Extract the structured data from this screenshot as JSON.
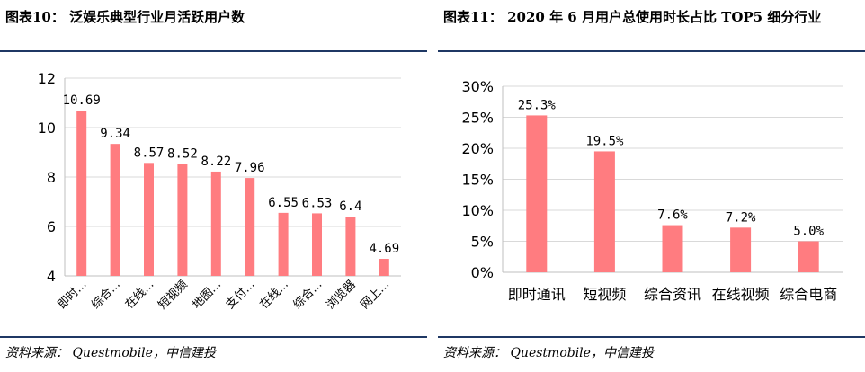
{
  "colors": {
    "bar": "#ff7c80",
    "grid": "#d9d9d9",
    "axis": "#bfbfbf",
    "rule": "#1f3864",
    "text": "#000000"
  },
  "left": {
    "title": "图表10：  泛娱乐典型行业月活跃用户数",
    "source": "资料来源：  Questmobile，中信建投"
  },
  "right": {
    "title": "图表11：  2020 年 6 月用户总使用时长占比 TOP5 细分行业",
    "source": "资料来源：  Questmobile，中信建投"
  },
  "chart_data": [
    {
      "type": "bar",
      "title": "",
      "xlabel": "",
      "ylabel": "",
      "categories": [
        "即时...",
        "综合...",
        "在线...",
        "短视频",
        "地图...",
        "支付...",
        "在线...",
        "综合...",
        "浏览器",
        "网上..."
      ],
      "values": [
        10.69,
        9.34,
        8.57,
        8.52,
        8.22,
        7.96,
        6.55,
        6.53,
        6.4,
        4.69
      ],
      "data_labels": [
        "10.69",
        "9.34",
        "8.57",
        "8.52",
        "8.22",
        "7.96",
        "6.55",
        "6.53",
        "6.4",
        "4.69"
      ],
      "ylim": [
        4,
        12
      ],
      "yticks": [
        4,
        6,
        8,
        10,
        12
      ],
      "ytick_labels": [
        "4",
        "6",
        "8",
        "10",
        "12"
      ],
      "grid": true,
      "legend": "none"
    },
    {
      "type": "bar",
      "title": "",
      "xlabel": "",
      "ylabel": "",
      "categories": [
        "即时通讯",
        "短视频",
        "综合资讯",
        "在线视频",
        "综合电商"
      ],
      "values": [
        25.3,
        19.5,
        7.6,
        7.2,
        5.0
      ],
      "data_labels": [
        "25.3%",
        "19.5%",
        "7.6%",
        "7.2%",
        "5.0%"
      ],
      "ylim": [
        0,
        30
      ],
      "yticks": [
        0,
        5,
        10,
        15,
        20,
        25,
        30
      ],
      "ytick_labels": [
        "0%",
        "5%",
        "10%",
        "15%",
        "20%",
        "25%",
        "30%"
      ],
      "grid": true,
      "legend": "none"
    }
  ]
}
